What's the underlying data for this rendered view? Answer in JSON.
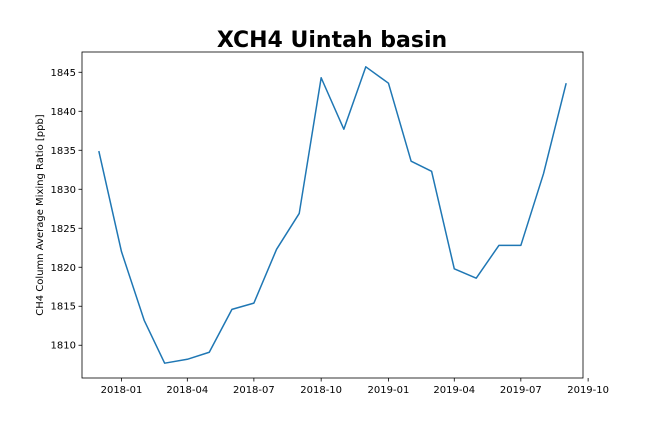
{
  "chart_data": {
    "type": "line",
    "title": "XCH4 Uintah basin",
    "xlabel": "",
    "ylabel": "CH4 Column Average Mixing Ratio [ppb]",
    "ylim": [
      1805.8,
      1847.6
    ],
    "xlim": [
      "2017-11-08",
      "2019-09-24"
    ],
    "grid": false,
    "line_color": "#1f77b4",
    "x_ticks": [
      {
        "date": "2018-01-01",
        "label": "2018-01"
      },
      {
        "date": "2018-04-01",
        "label": "2018-04"
      },
      {
        "date": "2018-07-01",
        "label": "2018-07"
      },
      {
        "date": "2018-10-01",
        "label": "2018-10"
      },
      {
        "date": "2019-01-01",
        "label": "2019-01"
      },
      {
        "date": "2019-04-01",
        "label": "2019-04"
      },
      {
        "date": "2019-07-01",
        "label": "2019-07"
      },
      {
        "date": "2019-10-01",
        "label": "2019-10"
      }
    ],
    "y_ticks": [
      {
        "value": 1810,
        "label": "1810"
      },
      {
        "value": 1815,
        "label": "1815"
      },
      {
        "value": 1820,
        "label": "1820"
      },
      {
        "value": 1825,
        "label": "1825"
      },
      {
        "value": 1830,
        "label": "1830"
      },
      {
        "value": 1835,
        "label": "1835"
      },
      {
        "value": 1840,
        "label": "1840"
      },
      {
        "value": 1845,
        "label": "1845"
      }
    ],
    "series": [
      {
        "x": [
          "2017-12-01",
          "2018-01-01",
          "2018-02-01",
          "2018-03-01",
          "2018-04-01",
          "2018-05-01",
          "2018-06-01",
          "2018-07-01",
          "2018-08-01",
          "2018-09-01",
          "2018-10-01",
          "2018-11-01",
          "2018-12-01",
          "2019-01-01",
          "2019-02-01",
          "2019-03-01",
          "2019-04-01",
          "2019-05-01",
          "2019-06-01",
          "2019-07-01",
          "2019-08-01",
          "2019-09-01"
        ],
        "y": [
          1834.9,
          1822.0,
          1813.2,
          1807.7,
          1808.2,
          1809.1,
          1814.6,
          1815.4,
          1822.3,
          1826.9,
          1844.3,
          1837.7,
          1845.7,
          1843.6,
          1833.6,
          1832.3,
          1819.8,
          1818.6,
          1822.8,
          1822.8,
          1832.0,
          1843.6
        ]
      }
    ]
  }
}
